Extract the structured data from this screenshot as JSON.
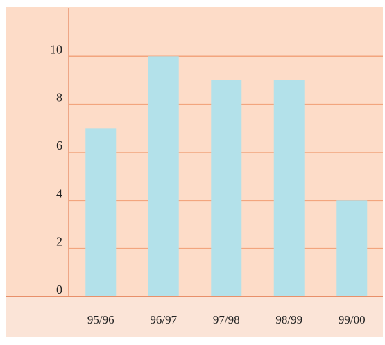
{
  "chart_data": {
    "type": "bar",
    "categories": [
      "95/96",
      "96/97",
      "97/98",
      "98/99",
      "99/00"
    ],
    "values": [
      7,
      10,
      9,
      9,
      4
    ],
    "yticks": [
      "0",
      "2",
      "4",
      "6",
      "8",
      "10"
    ],
    "ylim": [
      0,
      12
    ],
    "grid": true,
    "title": "",
    "xlabel": "",
    "ylabel": ""
  },
  "colors": {
    "plot_background": "#fddcc8",
    "axis_band": "#fbe4d7",
    "bar": "#b3e1ea",
    "grid": "#f2a57e",
    "axis": "#e8906a",
    "text": "#222222"
  }
}
